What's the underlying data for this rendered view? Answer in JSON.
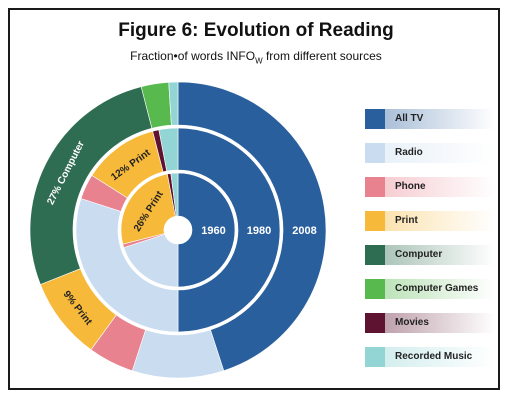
{
  "chart_data": {
    "type": "pie",
    "title": "Figure 6:  Evolution of Reading",
    "subtitle_main": "Fraction•of words INFO",
    "subtitle_sub": "W",
    "subtitle_tail": " from different sources",
    "series": [
      {
        "name": "1960",
        "values": [
          {
            "category": "All TV",
            "value": 50
          },
          {
            "category": "Radio",
            "value": 20
          },
          {
            "category": "Phone",
            "value": 1
          },
          {
            "category": "Print",
            "value": 26
          },
          {
            "category": "Computer",
            "value": 0
          },
          {
            "category": "Computer Games",
            "value": 0
          },
          {
            "category": "Movies",
            "value": 1
          },
          {
            "category": "Recorded Music",
            "value": 2
          }
        ]
      },
      {
        "name": "1980",
        "values": [
          {
            "category": "All TV",
            "value": 50
          },
          {
            "category": "Radio",
            "value": 30
          },
          {
            "category": "Phone",
            "value": 4
          },
          {
            "category": "Print",
            "value": 12
          },
          {
            "category": "Computer",
            "value": 0
          },
          {
            "category": "Computer Games",
            "value": 0
          },
          {
            "category": "Movies",
            "value": 1
          },
          {
            "category": "Recorded Music",
            "value": 3
          }
        ]
      },
      {
        "name": "2008",
        "values": [
          {
            "category": "All TV",
            "value": 45
          },
          {
            "category": "Radio",
            "value": 10
          },
          {
            "category": "Phone",
            "value": 5
          },
          {
            "category": "Print",
            "value": 9
          },
          {
            "category": "Computer",
            "value": 27
          },
          {
            "category": "Computer Games",
            "value": 3
          },
          {
            "category": "Movies",
            "value": 0
          },
          {
            "category": "Recorded Music",
            "value": 1
          }
        ]
      }
    ],
    "ring_labels": [
      "1960",
      "1980",
      "2008"
    ],
    "slice_labels": [
      {
        "series": "1960",
        "category": "Print",
        "text": "26% Print"
      },
      {
        "series": "1980",
        "category": "Print",
        "text": "12% Print"
      },
      {
        "series": "2008",
        "category": "Print",
        "text": "9% Print"
      },
      {
        "series": "2008",
        "category": "Computer",
        "text": "27% Computer"
      }
    ],
    "legend": [
      {
        "label": "All TV",
        "color": "#2a5f9e"
      },
      {
        "label": "Radio",
        "color": "#c9dcf0"
      },
      {
        "label": "Phone",
        "color": "#e8828e"
      },
      {
        "label": "Print",
        "color": "#f6b93a"
      },
      {
        "label": "Computer",
        "color": "#2f6d52"
      },
      {
        "label": "Computer Games",
        "color": "#58b94f"
      },
      {
        "label": "Movies",
        "color": "#5e1430"
      },
      {
        "label": "Recorded Music",
        "color": "#93d4d4"
      }
    ],
    "legend_placement": "right"
  }
}
